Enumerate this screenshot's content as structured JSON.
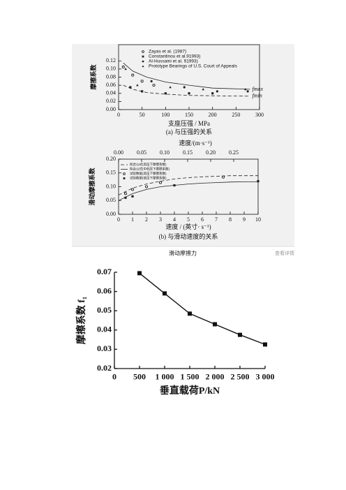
{
  "figure_caption": "滑动摩擦力",
  "view_link": "查看详情",
  "chart_data": [
    {
      "type": "line",
      "x_label": "支座压强 / MPa",
      "y_label": "摩擦系数",
      "caption": "(a) 与压强的关系",
      "xlim": [
        0,
        300
      ],
      "xticks": [
        0,
        50,
        100,
        150,
        200,
        250,
        300
      ],
      "ylim": [
        0,
        0.16
      ],
      "yticks": [
        {
          "value": 0,
          "label": "0.00"
        },
        {
          "value": 0.02,
          "label": "0.02"
        },
        {
          "value": 0.04,
          "label": "0.04"
        },
        {
          "value": 0.06,
          "label": "0.06"
        },
        {
          "value": 0.08,
          "label": "0.08"
        },
        {
          "value": 0.1,
          "label": "0.10"
        },
        {
          "value": 0.12,
          "label": "0.12"
        }
      ],
      "frame": "box",
      "legend": "upper left",
      "line_labels": true,
      "series": [
        {
          "name": "Zayas et al. (1987)",
          "color": "#222222",
          "marker": "circle-open",
          "line": "none",
          "x": [
            10,
            30,
            50,
            75
          ],
          "values": [
            0.105,
            0.085,
            0.07,
            0.06
          ]
        },
        {
          "name": "Constantinou et al.91993)",
          "color": "#222222",
          "marker": "square",
          "line": "none",
          "x": [
            25,
            50,
            100,
            150,
            200
          ],
          "values": [
            0.055,
            0.045,
            0.04,
            0.04,
            0.04
          ]
        },
        {
          "name": "Al-Hussaini et al. 91993)",
          "color": "#222222",
          "marker": "circle",
          "line": "none",
          "x": [
            70,
            140,
            210,
            275
          ],
          "values": [
            0.07,
            0.055,
            0.045,
            0.045
          ]
        },
        {
          "name": "Prototype Bearings of U.S. Court of Appeals",
          "color": "#222222",
          "marker": "triangle",
          "line": "none",
          "x": [
            15,
            40,
            110,
            180,
            270
          ],
          "values": [
            0.1,
            0.06,
            0.055,
            0.05,
            0.05
          ]
        },
        {
          "name": "fmax",
          "color": "#222222",
          "marker": "none",
          "line": "solid",
          "x": [
            10,
            30,
            60,
            100,
            150,
            200,
            280
          ],
          "values": [
            0.115,
            0.095,
            0.08,
            0.068,
            0.06,
            0.053,
            0.05
          ]
        },
        {
          "name": "fmin",
          "color": "#222222",
          "marker": "none",
          "line": "dashed",
          "x": [
            10,
            30,
            60,
            100,
            150,
            200,
            280
          ],
          "values": [
            0.06,
            0.05,
            0.042,
            0.038,
            0.035,
            0.034,
            0.033
          ]
        }
      ]
    },
    {
      "type": "line",
      "x_label": "速度 / (英寸· s⁻¹)",
      "y_label": "滑动摩擦系数",
      "caption": "(b) 与滑动速度的关系",
      "x2_label": "速度/(m·s⁻¹)",
      "xlim": [
        0,
        10
      ],
      "xticks": [
        0,
        1,
        2,
        3,
        4,
        5,
        6,
        7,
        8,
        9,
        10
      ],
      "x2lim": [
        0,
        0.303
      ],
      "x2ticks": [
        {
          "value": 0,
          "label": "0.00"
        },
        {
          "value": 0.05,
          "label": "0.05"
        },
        {
          "value": 0.1,
          "label": "0.10"
        },
        {
          "value": 0.15,
          "label": "0.15"
        },
        {
          "value": 0.2,
          "label": "0.20"
        },
        {
          "value": 0.25,
          "label": "0.25"
        }
      ],
      "ylim": [
        0,
        0.2
      ],
      "yticks": [
        {
          "value": 0,
          "label": "0.00"
        },
        {
          "value": 0.05,
          "label": "0.05"
        },
        {
          "value": 0.1,
          "label": "0.10"
        },
        {
          "value": 0.15,
          "label": "0.15"
        },
        {
          "value": 0.2,
          "label": "0.20"
        }
      ],
      "frame": "box",
      "legend": "upper left",
      "line_labels": false,
      "series": [
        {
          "name": "拟合公式(高压下摩擦系数)",
          "color": "#222222",
          "marker": "none",
          "line": "dashed",
          "x": [
            0,
            1,
            2,
            3,
            4,
            5,
            6,
            7,
            8,
            9,
            10
          ],
          "values": [
            0.07,
            0.095,
            0.11,
            0.12,
            0.128,
            0.133,
            0.136,
            0.138,
            0.14,
            0.14,
            0.14
          ]
        },
        {
          "name": "拟合公式(中低压下摩擦系数)",
          "color": "#222222",
          "marker": "none",
          "line": "solid",
          "x": [
            0,
            1,
            2,
            3,
            4,
            5,
            6,
            7,
            8,
            9,
            10
          ],
          "values": [
            0.05,
            0.075,
            0.09,
            0.1,
            0.105,
            0.11,
            0.113,
            0.115,
            0.117,
            0.118,
            0.118
          ]
        },
        {
          "name": "试验数据(高压下摩擦系数)",
          "color": "#222222",
          "marker": "circle-open",
          "line": "none",
          "x": [
            0.5,
            1,
            2,
            3,
            7.5
          ],
          "values": [
            0.075,
            0.09,
            0.1,
            0.115,
            0.135
          ]
        },
        {
          "name": "试验数据(低压下摩擦系数)",
          "color": "#222222",
          "marker": "square",
          "line": "none",
          "x": [
            0.5,
            1,
            4,
            10
          ],
          "values": [
            0.06,
            0.065,
            0.105,
            0.12
          ]
        }
      ]
    },
    {
      "type": "line",
      "x_label": "垂直载荷P/kN",
      "y_label": "摩擦系数 f₁",
      "xlim": [
        0,
        3000
      ],
      "xticks": [
        0,
        500,
        {
          "value": 1000,
          "label": "1 000"
        },
        {
          "value": 1500,
          "label": "1 500"
        },
        {
          "value": 2000,
          "label": "2 000"
        },
        {
          "value": 2500,
          "label": "2 500"
        },
        {
          "value": 3000,
          "label": "3 000"
        }
      ],
      "ylim": [
        0.02,
        0.07
      ],
      "yticks": [
        {
          "value": 0.02,
          "label": "0.02"
        },
        {
          "value": 0.03,
          "label": "0.03"
        },
        {
          "value": 0.04,
          "label": "0.04"
        },
        {
          "value": 0.05,
          "label": "0.05"
        },
        {
          "value": 0.06,
          "label": "0.06"
        },
        {
          "value": 0.07,
          "label": "0.07"
        }
      ],
      "frame": "axes",
      "series": [
        {
          "color": "#111111",
          "marker": "square",
          "line": "solid",
          "x": [
            500,
            1000,
            1500,
            2000,
            2500,
            3000
          ],
          "values": [
            0.0695,
            0.059,
            0.0485,
            0.043,
            0.0375,
            0.0325
          ]
        }
      ]
    }
  ]
}
